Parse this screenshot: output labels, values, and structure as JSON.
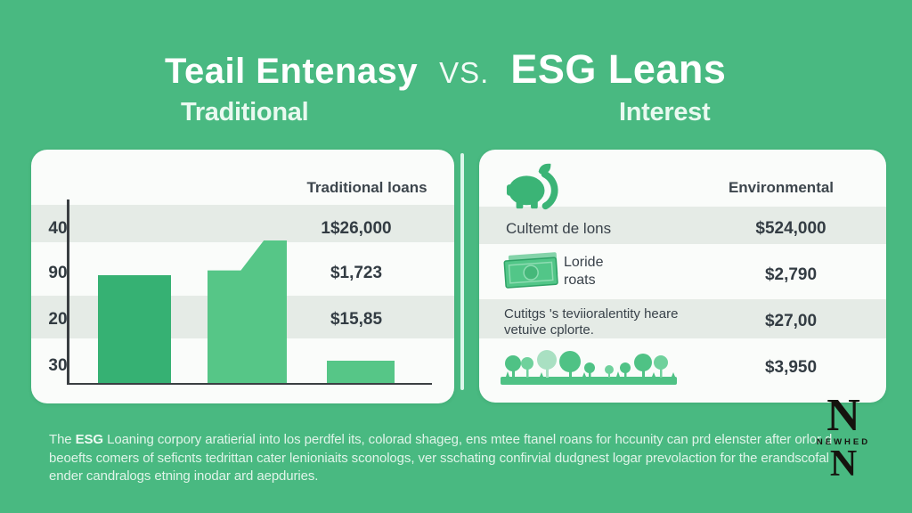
{
  "header": {
    "title_left": "Teail Entenasy",
    "title_vs": "VS.",
    "title_right": "ESG Leans",
    "subtitle_left": "Traditional",
    "subtitle_right": "Interest"
  },
  "left_panel": {
    "header": "Traditional loans",
    "y_axis_labels": [
      "40",
      "90",
      "20",
      "30"
    ],
    "value_labels": [
      "1$26,000",
      "$1,723",
      "$15,85"
    ]
  },
  "right_panel": {
    "header": "Environmental",
    "row1": {
      "label": "Cultemt de lons",
      "value": "$524,000"
    },
    "row2": {
      "label_line1": "Loride",
      "label_line2": "roats",
      "value": "$2,790"
    },
    "row3": {
      "label_line1": "Cutitgs 's teviioralentity heare",
      "label_line2": "vetuive cplorte.",
      "value": "$27,00"
    },
    "row4": {
      "value": "$3,950"
    }
  },
  "footer": {
    "line1_pre": "The ",
    "line1_bold": "ESG",
    "line1_rest": " Loaning corpory aratierial into los perdfel its, colorad shageg, ens mtee ftanel roans for hccunity can prd elenster after orlor d",
    "line2": "beoefts comers of seficnts tedrittan cater lenioniaits sconologs, ver sschating confirvial dudgnest logar prevolaction for the erandscofal",
    "line3": "ender candralogs etning inodar ard aepduries."
  },
  "logo": {
    "monogram_top": "N",
    "word": "NEWHED",
    "monogram_bottom": "N"
  },
  "colors": {
    "background": "#49b981",
    "panel": "#fafcfa",
    "stripe_band": "#e5ebe6",
    "bar_dark": "#36b173",
    "bar_light": "#56c687",
    "icon_green": "#3bb476",
    "text_dark": "#39424a",
    "divider": "#dcf6ea",
    "title_white": "#ffffff"
  },
  "chart_data": [
    {
      "type": "bar",
      "title": "Traditional loans",
      "y_tick_labels_top_to_bottom": [
        "40",
        "90",
        "20",
        "30"
      ],
      "categories": [
        "bar-1",
        "bar-2",
        "bar-3"
      ],
      "values_pct_of_axis_height": [
        58,
        77,
        12
      ],
      "series_note": "bar-2 has a stepped top: left portion at ~61%, rising to 77% on the right",
      "bar_colors": [
        "#36b173",
        "#56c687",
        "#56c687"
      ],
      "value_column_labels": [
        "1$26,000",
        "$1,723",
        "$15,85"
      ],
      "legend_position": "none",
      "grid": "alternating horizontal stripe bands",
      "xlabel": "",
      "ylabel": ""
    },
    {
      "type": "table",
      "title": "Environmental",
      "rows": [
        {
          "icon": "piggy-bank-leaf-icon",
          "label": "Cultemt de lons",
          "value": "$524,000"
        },
        {
          "icon": "banknote-icon",
          "label": "Loride roats",
          "value": "$2,790"
        },
        {
          "icon": null,
          "label": "Cutitgs 's teviioralentity heare vetuive cplorte.",
          "value": "$27,00"
        },
        {
          "icon": "trees-illustration",
          "label": "",
          "value": "$3,950"
        }
      ]
    }
  ]
}
